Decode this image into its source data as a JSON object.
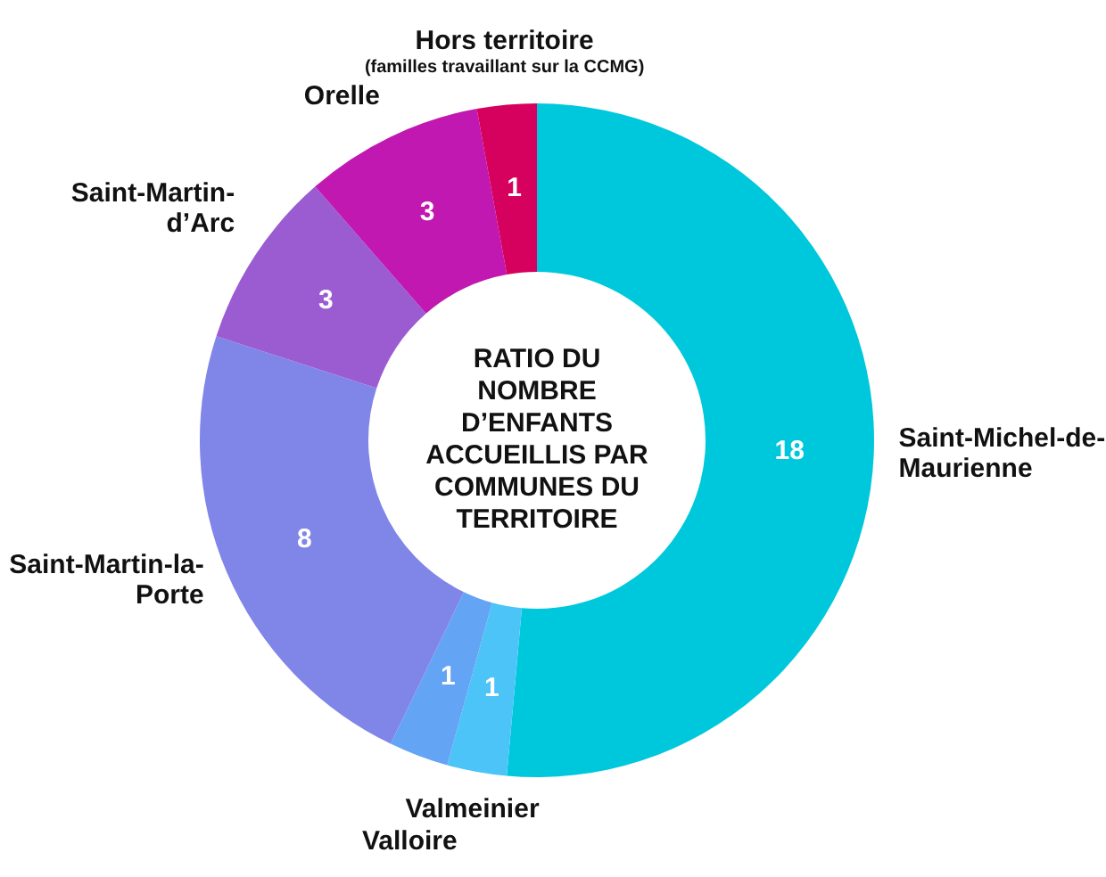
{
  "chart_data": {
    "type": "donut",
    "title": "RATIO DU NOMBRE D’ENFANTS ACCUEILLIS PAR COMMUNES DU TERRITOIRE",
    "categories": [
      "Saint-Michel-de-Maurienne",
      "Valmeinier",
      "Valloire",
      "Saint-Martin-la-Porte",
      "Saint-Martin-d’Arc",
      "Orelle",
      "Hors territoire (familles travaillant sur la CCMG)"
    ],
    "values": [
      18,
      1,
      1,
      8,
      3,
      3,
      1
    ],
    "colors": [
      "#00c8dc",
      "#4cc4f8",
      "#64a4f4",
      "#7f86e8",
      "#9b5cd2",
      "#c018b0",
      "#d6005e"
    ],
    "data_labels": true,
    "legend": false
  }
}
